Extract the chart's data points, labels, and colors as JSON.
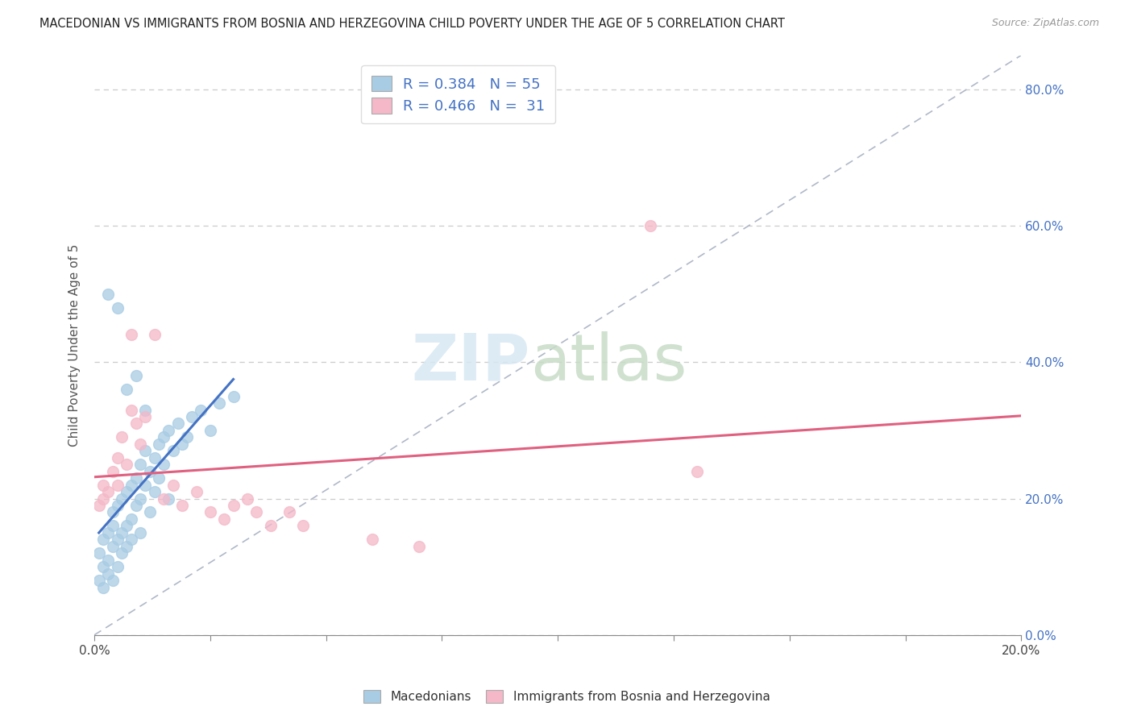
{
  "title": "MACEDONIAN VS IMMIGRANTS FROM BOSNIA AND HERZEGOVINA CHILD POVERTY UNDER THE AGE OF 5 CORRELATION CHART",
  "source": "Source: ZipAtlas.com",
  "ylabel": "Child Poverty Under the Age of 5",
  "xlim": [
    0.0,
    0.2
  ],
  "ylim": [
    0.0,
    0.85
  ],
  "x_ticks": [
    0.0,
    0.025,
    0.05,
    0.075,
    0.1,
    0.125,
    0.15,
    0.175,
    0.2
  ],
  "x_tick_labels": [
    "0.0%",
    "",
    "",
    "",
    "",
    "",
    "",
    "",
    "20.0%"
  ],
  "y_ticks_right": [
    0.0,
    0.2,
    0.4,
    0.6,
    0.8
  ],
  "y_tick_labels_right": [
    "0.0%",
    "20.0%",
    "40.0%",
    "60.0%",
    "80.0%"
  ],
  "macedonians_R": 0.384,
  "macedonians_N": 55,
  "bosnia_R": 0.466,
  "bosnia_N": 31,
  "blue_color": "#a8cce4",
  "pink_color": "#f4b8c8",
  "blue_line_color": "#4472c4",
  "pink_line_color": "#e06080",
  "legend_label1": "Macedonians",
  "legend_label2": "Immigrants from Bosnia and Herzegovina",
  "blue_scatter_x": [
    0.001,
    0.001,
    0.002,
    0.002,
    0.002,
    0.003,
    0.003,
    0.003,
    0.004,
    0.004,
    0.004,
    0.004,
    0.005,
    0.005,
    0.005,
    0.006,
    0.006,
    0.006,
    0.007,
    0.007,
    0.007,
    0.008,
    0.008,
    0.008,
    0.009,
    0.009,
    0.01,
    0.01,
    0.01,
    0.011,
    0.011,
    0.012,
    0.012,
    0.013,
    0.013,
    0.014,
    0.014,
    0.015,
    0.015,
    0.016,
    0.016,
    0.017,
    0.018,
    0.019,
    0.02,
    0.021,
    0.023,
    0.025,
    0.027,
    0.03,
    0.003,
    0.005,
    0.007,
    0.009,
    0.011
  ],
  "blue_scatter_y": [
    0.08,
    0.12,
    0.1,
    0.14,
    0.07,
    0.11,
    0.15,
    0.09,
    0.13,
    0.16,
    0.08,
    0.18,
    0.14,
    0.1,
    0.19,
    0.15,
    0.12,
    0.2,
    0.16,
    0.21,
    0.13,
    0.17,
    0.22,
    0.14,
    0.19,
    0.23,
    0.2,
    0.25,
    0.15,
    0.22,
    0.27,
    0.24,
    0.18,
    0.26,
    0.21,
    0.28,
    0.23,
    0.29,
    0.25,
    0.3,
    0.2,
    0.27,
    0.31,
    0.28,
    0.29,
    0.32,
    0.33,
    0.3,
    0.34,
    0.35,
    0.5,
    0.48,
    0.36,
    0.38,
    0.33
  ],
  "pink_scatter_x": [
    0.001,
    0.002,
    0.002,
    0.003,
    0.004,
    0.005,
    0.005,
    0.006,
    0.007,
    0.008,
    0.009,
    0.01,
    0.011,
    0.013,
    0.015,
    0.017,
    0.019,
    0.022,
    0.025,
    0.028,
    0.03,
    0.033,
    0.035,
    0.038,
    0.042,
    0.045,
    0.06,
    0.07,
    0.12,
    0.13,
    0.008
  ],
  "pink_scatter_y": [
    0.19,
    0.2,
    0.22,
    0.21,
    0.24,
    0.26,
    0.22,
    0.29,
    0.25,
    0.44,
    0.31,
    0.28,
    0.32,
    0.44,
    0.2,
    0.22,
    0.19,
    0.21,
    0.18,
    0.17,
    0.19,
    0.2,
    0.18,
    0.16,
    0.18,
    0.16,
    0.14,
    0.13,
    0.6,
    0.24,
    0.33
  ]
}
